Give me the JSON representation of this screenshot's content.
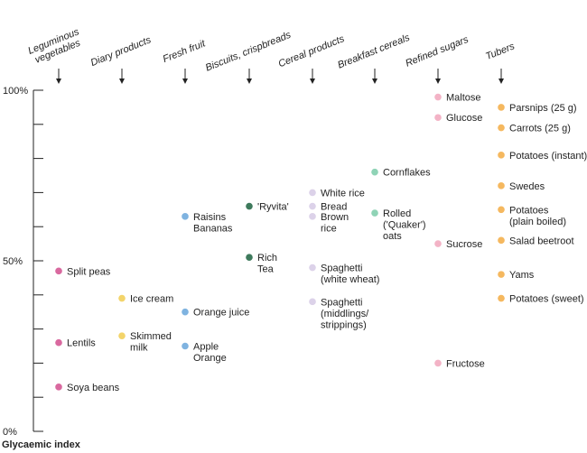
{
  "chart_data": {
    "type": "scatter",
    "title": "",
    "xlabel": "",
    "ylabel": "Glycaemic index",
    "ylim": [
      0,
      100
    ],
    "yticks": [
      "0%",
      "50%",
      "100%"
    ],
    "categories": [
      {
        "name": "Leguminous vegetables",
        "lines": [
          "Leguminous",
          "vegetables"
        ]
      },
      {
        "name": "Diary products",
        "lines": [
          "Diary products"
        ]
      },
      {
        "name": "Fresh fruit",
        "lines": [
          "Fresh fruit"
        ]
      },
      {
        "name": "Biscuits, crispbreads",
        "lines": [
          "Biscuits, crispbreads"
        ]
      },
      {
        "name": "Cereal products",
        "lines": [
          "Cereal products"
        ]
      },
      {
        "name": "Breakfast cereals",
        "lines": [
          "Breakfast cereals"
        ]
      },
      {
        "name": "Refined sugars",
        "lines": [
          "Refined sugars"
        ]
      },
      {
        "name": "Tubers",
        "lines": [
          "Tubers"
        ]
      }
    ],
    "points": [
      {
        "category": "Leguminous vegetables",
        "value": 47,
        "label": [
          "Split peas"
        ],
        "color": "#d9699f"
      },
      {
        "category": "Leguminous vegetables",
        "value": 26,
        "label": [
          "Lentils"
        ],
        "color": "#d9699f"
      },
      {
        "category": "Leguminous vegetables",
        "value": 13,
        "label": [
          "Soya beans"
        ],
        "color": "#d9699f"
      },
      {
        "category": "Diary products",
        "value": 39,
        "label": [
          "Ice cream"
        ],
        "color": "#f3d46a"
      },
      {
        "category": "Diary products",
        "value": 28,
        "label": [
          "Skimmed",
          "milk"
        ],
        "color": "#f3d46a"
      },
      {
        "category": "Fresh fruit",
        "value": 63,
        "label": [
          "Raisins",
          "Bananas"
        ],
        "color": "#7fb3e0"
      },
      {
        "category": "Fresh fruit",
        "value": 35,
        "label": [
          "Orange juice"
        ],
        "color": "#7fb3e0"
      },
      {
        "category": "Fresh fruit",
        "value": 25,
        "label": [
          "Apple",
          "Orange"
        ],
        "color": "#7fb3e0"
      },
      {
        "category": "Biscuits, crispbreads",
        "value": 66,
        "label": [
          "'Ryvita'"
        ],
        "color": "#3e7a5c"
      },
      {
        "category": "Biscuits, crispbreads",
        "value": 51,
        "label": [
          "Rich",
          "Tea"
        ],
        "color": "#3e7a5c"
      },
      {
        "category": "Cereal products",
        "value": 70,
        "label": [
          "White rice"
        ],
        "color": "#dcd2e9"
      },
      {
        "category": "Cereal products",
        "value": 66,
        "label": [
          "Bread"
        ],
        "color": "#dcd2e9"
      },
      {
        "category": "Cereal products",
        "value": 63,
        "label": [
          "Brown",
          "rice"
        ],
        "color": "#dcd2e9"
      },
      {
        "category": "Cereal products",
        "value": 48,
        "label": [
          "Spaghetti",
          "(white wheat)"
        ],
        "color": "#dcd2e9"
      },
      {
        "category": "Cereal products",
        "value": 38,
        "label": [
          "Spaghetti",
          "(middlings/",
          "strippings)"
        ],
        "color": "#dcd2e9"
      },
      {
        "category": "Breakfast cereals",
        "value": 76,
        "label": [
          "Cornflakes"
        ],
        "color": "#8fd3b6"
      },
      {
        "category": "Breakfast cereals",
        "value": 64,
        "label": [
          "Rolled",
          "('Quaker')",
          "oats"
        ],
        "color": "#8fd3b6"
      },
      {
        "category": "Refined sugars",
        "value": 98,
        "label": [
          "Maltose"
        ],
        "color": "#f3b3c6"
      },
      {
        "category": "Refined sugars",
        "value": 92,
        "label": [
          "Glucose"
        ],
        "color": "#f3b3c6"
      },
      {
        "category": "Refined sugars",
        "value": 55,
        "label": [
          "Sucrose"
        ],
        "color": "#f3b3c6"
      },
      {
        "category": "Refined sugars",
        "value": 20,
        "label": [
          "Fructose"
        ],
        "color": "#f3b3c6"
      },
      {
        "category": "Tubers",
        "value": 95,
        "label": [
          "Parsnips (25 g)"
        ],
        "color": "#f5b85f"
      },
      {
        "category": "Tubers",
        "value": 89,
        "label": [
          "Carrots (25 g)"
        ],
        "color": "#f5b85f"
      },
      {
        "category": "Tubers",
        "value": 81,
        "label": [
          "Potatoes (instant)"
        ],
        "color": "#f5b85f"
      },
      {
        "category": "Tubers",
        "value": 72,
        "label": [
          "Swedes"
        ],
        "color": "#f5b85f"
      },
      {
        "category": "Tubers",
        "value": 65,
        "label": [
          "Potatoes",
          "(plain boiled)"
        ],
        "color": "#f5b85f"
      },
      {
        "category": "Tubers",
        "value": 56,
        "label": [
          "Salad beetroot"
        ],
        "color": "#f5b85f"
      },
      {
        "category": "Tubers",
        "value": 46,
        "label": [
          "Yams"
        ],
        "color": "#f5b85f"
      },
      {
        "category": "Tubers",
        "value": 39,
        "label": [
          "Potatoes (sweet)"
        ],
        "color": "#f5b85f"
      }
    ]
  }
}
